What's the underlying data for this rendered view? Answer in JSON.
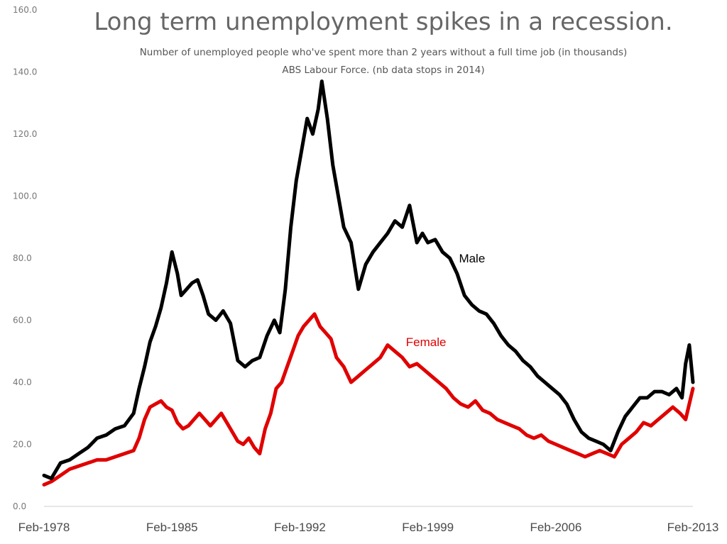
{
  "chart_data": {
    "type": "line",
    "title": "Long term unemployment spikes in a recession.",
    "subtitle_lines": [
      "Number of unemployed people who've spent more than 2 years without a full time job (in thousands)",
      "ABS Labour Force. (nb data stops in 2014)"
    ],
    "xlabel": "",
    "ylabel": "",
    "ylim": [
      0,
      160
    ],
    "yticks": [
      "0.0",
      "20.0",
      "40.0",
      "60.0",
      "80.0",
      "100.0",
      "120.0",
      "140.0",
      "160.0"
    ],
    "x_range": [
      1978.1,
      2013.6
    ],
    "xticks": [
      {
        "label": "Feb-1978",
        "value": 1978.1
      },
      {
        "label": "Feb-1985",
        "value": 1985.1
      },
      {
        "label": "Feb-1992",
        "value": 1992.1
      },
      {
        "label": "Feb-1999",
        "value": 1999.1
      },
      {
        "label": "Feb-2006",
        "value": 2006.1
      },
      {
        "label": "Feb-2013",
        "value": 2013.1
      }
    ],
    "grid": false,
    "legend": "inline labels",
    "series": [
      {
        "name": "Male",
        "color": "#000000",
        "label_anchor": [
          1901.0,
          0
        ],
        "x": [
          1978.1,
          1978.5,
          1979.0,
          1979.5,
          1980.0,
          1980.5,
          1981.0,
          1981.5,
          1982.0,
          1982.5,
          1983.0,
          1983.3,
          1983.6,
          1983.9,
          1984.2,
          1984.5,
          1984.8,
          1985.1,
          1985.4,
          1985.6,
          1985.9,
          1986.2,
          1986.5,
          1986.8,
          1987.1,
          1987.5,
          1987.9,
          1988.3,
          1988.7,
          1989.1,
          1989.5,
          1989.9,
          1990.3,
          1990.7,
          1991.0,
          1991.3,
          1991.6,
          1991.9,
          1992.2,
          1992.5,
          1992.8,
          1993.1,
          1993.3,
          1993.6,
          1993.9,
          1994.2,
          1994.5,
          1994.9,
          1995.3,
          1995.7,
          1996.1,
          1996.5,
          1996.9,
          1997.3,
          1997.7,
          1998.1,
          1998.5,
          1998.8,
          1999.1,
          1999.5,
          1999.9,
          2000.3,
          2000.7,
          2001.1,
          2001.5,
          2001.9,
          2002.3,
          2002.7,
          2003.1,
          2003.5,
          2003.9,
          2004.3,
          2004.7,
          2005.1,
          2005.5,
          2005.9,
          2006.3,
          2006.7,
          2007.1,
          2007.5,
          2007.9,
          2008.3,
          2008.7,
          2009.1,
          2009.5,
          2009.9,
          2010.3,
          2010.7,
          2011.1,
          2011.5,
          2011.9,
          2012.3,
          2012.7,
          2013.0,
          2013.2,
          2013.4,
          2013.6
        ],
        "values": [
          10,
          9,
          14,
          15,
          17,
          19,
          22,
          23,
          25,
          26,
          30,
          38,
          45,
          53,
          58,
          64,
          72,
          82,
          75,
          68,
          70,
          72,
          73,
          68,
          62,
          60,
          63,
          59,
          47,
          45,
          47,
          48,
          55,
          60,
          56,
          70,
          90,
          105,
          115,
          125,
          120,
          128,
          137,
          125,
          110,
          100,
          90,
          85,
          70,
          78,
          82,
          85,
          88,
          92,
          90,
          97,
          85,
          88,
          85,
          86,
          82,
          80,
          75,
          68,
          65,
          63,
          62,
          59,
          55,
          52,
          50,
          47,
          45,
          42,
          40,
          38,
          36,
          33,
          28,
          24,
          22,
          21,
          20,
          18,
          24,
          29,
          32,
          35,
          35,
          37,
          37,
          36,
          38,
          35,
          46,
          52,
          40
        ]
      },
      {
        "name": "Female",
        "color": "#e00000",
        "x": [
          1978.1,
          1978.5,
          1979.0,
          1979.5,
          1980.0,
          1980.5,
          1981.0,
          1981.5,
          1982.0,
          1982.5,
          1983.0,
          1983.3,
          1983.6,
          1983.9,
          1984.2,
          1984.5,
          1984.8,
          1985.1,
          1985.4,
          1985.7,
          1986.0,
          1986.3,
          1986.6,
          1986.9,
          1987.2,
          1987.5,
          1987.8,
          1988.1,
          1988.4,
          1988.7,
          1989.0,
          1989.3,
          1989.6,
          1989.9,
          1990.2,
          1990.5,
          1990.8,
          1991.1,
          1991.4,
          1991.7,
          1992.0,
          1992.3,
          1992.6,
          1992.9,
          1993.2,
          1993.5,
          1993.8,
          1994.1,
          1994.5,
          1994.9,
          1995.3,
          1995.7,
          1996.1,
          1996.5,
          1996.9,
          1997.3,
          1997.7,
          1998.1,
          1998.5,
          1998.9,
          1999.3,
          1999.7,
          2000.1,
          2000.5,
          2000.9,
          2001.3,
          2001.7,
          2002.1,
          2002.5,
          2002.9,
          2003.3,
          2003.7,
          2004.1,
          2004.5,
          2004.9,
          2005.3,
          2005.7,
          2006.1,
          2006.5,
          2006.9,
          2007.3,
          2007.7,
          2008.1,
          2008.5,
          2008.9,
          2009.3,
          2009.7,
          2010.1,
          2010.5,
          2010.9,
          2011.3,
          2011.7,
          2012.1,
          2012.5,
          2012.9,
          2013.2,
          2013.6
        ],
        "values": [
          7,
          8,
          10,
          12,
          13,
          14,
          15,
          15,
          16,
          17,
          18,
          22,
          28,
          32,
          33,
          34,
          32,
          31,
          27,
          25,
          26,
          28,
          30,
          28,
          26,
          28,
          30,
          27,
          24,
          21,
          20,
          22,
          19,
          17,
          25,
          30,
          38,
          40,
          45,
          50,
          55,
          58,
          60,
          62,
          58,
          56,
          54,
          48,
          45,
          40,
          42,
          44,
          46,
          48,
          52,
          50,
          48,
          45,
          46,
          44,
          42,
          40,
          38,
          35,
          33,
          32,
          34,
          31,
          30,
          28,
          27,
          26,
          25,
          23,
          22,
          23,
          21,
          20,
          19,
          18,
          17,
          16,
          17,
          18,
          17,
          16,
          20,
          22,
          24,
          27,
          26,
          28,
          30,
          32,
          30,
          28,
          38
        ]
      }
    ]
  }
}
